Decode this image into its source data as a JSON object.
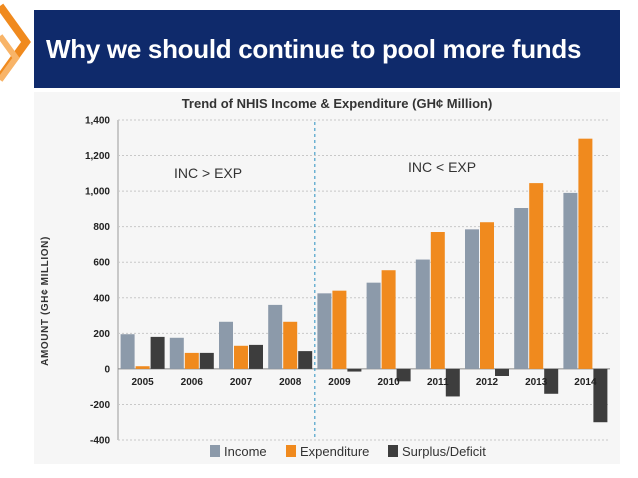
{
  "slide": {
    "title": "Why we should continue to pool more funds",
    "colors": {
      "title_bar": "#0f2a6b",
      "accent": "#f08a1e"
    }
  },
  "chart_data": {
    "type": "bar",
    "title": "Trend of NHIS Income & Expenditure (GH¢ Million)",
    "ylabel": "AMOUNT  (GH¢ MILLION)",
    "xlabel": "",
    "categories": [
      "2005",
      "2006",
      "2007",
      "2008",
      "2009",
      "2010",
      "2011",
      "2012",
      "2013",
      "2014"
    ],
    "series": [
      {
        "name": "Income",
        "color": "#8c9aaa",
        "values": [
          195,
          175,
          265,
          360,
          425,
          485,
          615,
          785,
          905,
          990
        ]
      },
      {
        "name": "Expenditure",
        "color": "#f08a1e",
        "values": [
          15,
          90,
          130,
          265,
          440,
          555,
          770,
          825,
          1045,
          1295
        ]
      },
      {
        "name": "Surplus/Deficit",
        "color": "#3d3d3d",
        "values": [
          180,
          90,
          135,
          100,
          -15,
          -70,
          -155,
          -40,
          -140,
          -300
        ]
      }
    ],
    "ylim": [
      -400,
      1400
    ],
    "yticks": [
      "1,400",
      "1,200",
      "1,000",
      "800",
      "600",
      "400",
      "200",
      "0",
      "-200",
      "-400"
    ],
    "ytick_values": [
      1400,
      1200,
      1000,
      800,
      600,
      400,
      200,
      0,
      -200,
      -400
    ],
    "grid": true,
    "legend": "bottom",
    "annotations": [
      "INC > EXP",
      "INC < EXP"
    ],
    "divider_after": "2008"
  }
}
